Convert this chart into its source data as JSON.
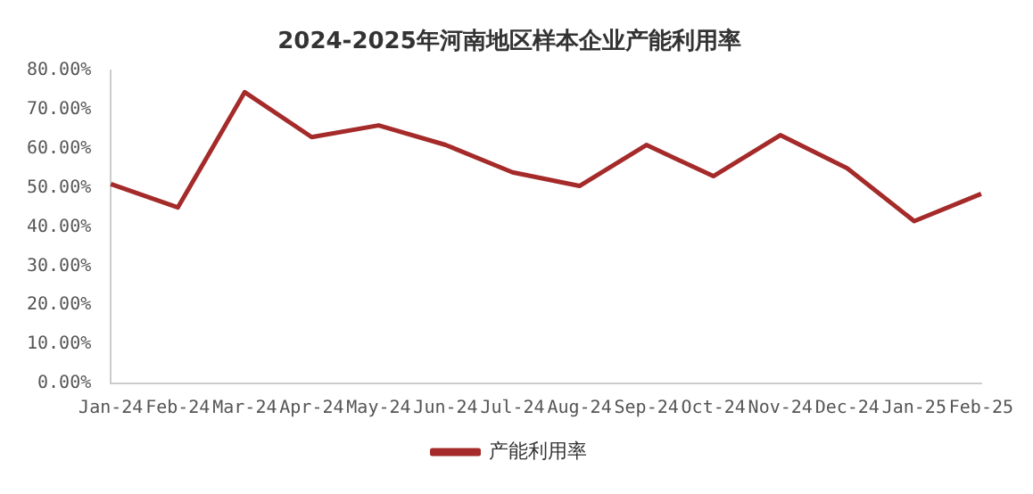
{
  "chart_data": {
    "type": "line",
    "title": "2024-2025年河南地区样本企业产能利用率",
    "categories": [
      "Jan-24",
      "Feb-24",
      "Mar-24",
      "Apr-24",
      "May-24",
      "Jun-24",
      "Jul-24",
      "Aug-24",
      "Sep-24",
      "Oct-24",
      "Nov-24",
      "Dec-24",
      "Jan-25",
      "Feb-25"
    ],
    "series": [
      {
        "name": "产能利用率",
        "color": "#a52a2a",
        "values": [
          51,
          45,
          74.5,
          63,
          66,
          61,
          54,
          50.5,
          61,
          53,
          63.5,
          55,
          41.5,
          48.5
        ]
      }
    ],
    "ylim": [
      0,
      80
    ],
    "yticks": [
      {
        "value": 0,
        "label": "0.00%"
      },
      {
        "value": 10,
        "label": "10.00%"
      },
      {
        "value": 20,
        "label": "20.00%"
      },
      {
        "value": 30,
        "label": "30.00%"
      },
      {
        "value": 40,
        "label": "40.00%"
      },
      {
        "value": 50,
        "label": "50.00%"
      },
      {
        "value": 60,
        "label": "60.00%"
      },
      {
        "value": 70,
        "label": "70.00%"
      },
      {
        "value": 80,
        "label": "80.00%"
      }
    ],
    "grid": false,
    "legend": "bottom",
    "marker": "none",
    "line_style": "solid"
  }
}
